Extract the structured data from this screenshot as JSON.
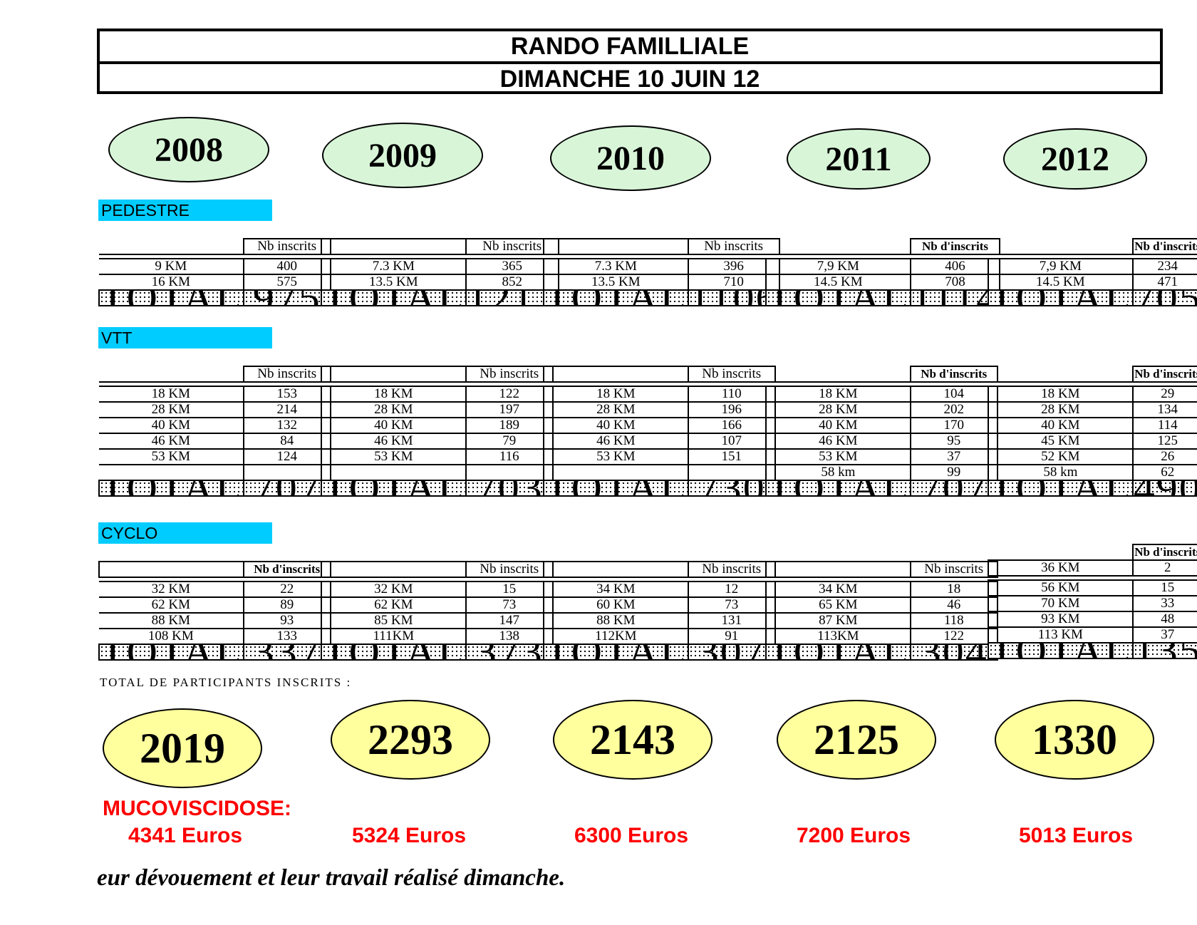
{
  "header": {
    "title": "RANDO FAMILLIALE",
    "date": "DIMANCHE 10 JUIN 12"
  },
  "years": [
    "2008",
    "2009",
    "2010",
    "2011",
    "2012"
  ],
  "sections": {
    "pedestre": {
      "label": "PEDESTRE",
      "tables": [
        {
          "header": "Nb inscrits",
          "rows": [
            [
              "9 KM",
              "400"
            ],
            [
              "16 KM",
              "575"
            ]
          ],
          "total": [
            "TOTAL",
            "975"
          ]
        },
        {
          "header": "Nb inscrits",
          "rows": [
            [
              "7.3 KM",
              "365"
            ],
            [
              "13.5 KM",
              "852"
            ]
          ],
          "total": [
            "TOTAL",
            "1217"
          ]
        },
        {
          "header": "Nb inscrits",
          "rows": [
            [
              "7.3 KM",
              "396"
            ],
            [
              "13.5 KM",
              "710"
            ]
          ],
          "total": [
            "TOTAL",
            "1106"
          ]
        },
        {
          "header": "Nb d'inscrits",
          "rows": [
            [
              "7,9 KM",
              "406"
            ],
            [
              "14.5 KM",
              "708"
            ]
          ],
          "total": [
            "TOTAL",
            "1114"
          ]
        },
        {
          "header": "Nb d'inscrits",
          "rows": [
            [
              "7,9 KM",
              "234"
            ],
            [
              "14.5 KM",
              "471"
            ]
          ],
          "total": [
            "TOTAL",
            "705"
          ]
        }
      ]
    },
    "vtt": {
      "label": "VTT",
      "tables": [
        {
          "header": "Nb inscrits",
          "rows": [
            [
              "18 KM",
              "153"
            ],
            [
              "28 KM",
              "214"
            ],
            [
              "40 KM",
              "132"
            ],
            [
              "46 KM",
              "84"
            ],
            [
              "53 KM",
              "124"
            ],
            [
              "",
              ""
            ]
          ],
          "total": [
            "TOTAL",
            "707"
          ]
        },
        {
          "header": "Nb inscrits",
          "rows": [
            [
              "18 KM",
              "122"
            ],
            [
              "28 KM",
              "197"
            ],
            [
              "40 KM",
              "189"
            ],
            [
              "46 KM",
              "79"
            ],
            [
              "53 KM",
              "116"
            ],
            [
              "",
              ""
            ]
          ],
          "total": [
            "TOTAL",
            "703"
          ]
        },
        {
          "header": "Nb inscrits",
          "rows": [
            [
              "18 KM",
              "110"
            ],
            [
              "28 KM",
              "196"
            ],
            [
              "40 KM",
              "166"
            ],
            [
              "46 KM",
              "107"
            ],
            [
              "53 KM",
              "151"
            ],
            [
              "",
              ""
            ]
          ],
          "total": [
            "TOTAL",
            "730"
          ]
        },
        {
          "header": "Nb d'inscrits",
          "rows": [
            [
              "18 KM",
              "104"
            ],
            [
              "28 KM",
              "202"
            ],
            [
              "40 KM",
              "170"
            ],
            [
              "46 KM",
              "95"
            ],
            [
              "53 KM",
              "37"
            ],
            [
              "58 km",
              "99"
            ]
          ],
          "total": [
            "TOTAL",
            "707"
          ]
        },
        {
          "header": "Nb d'inscrits",
          "rows": [
            [
              "18 KM",
              "29"
            ],
            [
              "28 KM",
              "134"
            ],
            [
              "40 KM",
              "114"
            ],
            [
              "45 KM",
              "125"
            ],
            [
              "52 KM",
              "26"
            ],
            [
              "58 km",
              "62"
            ]
          ],
          "total": [
            "TOTAL",
            "490"
          ]
        }
      ]
    },
    "cyclo": {
      "label": "CYCLO",
      "tables": [
        {
          "header": "Nb d'inscrits",
          "rows": [
            [
              "32 KM",
              "22"
            ],
            [
              "62 KM",
              "89"
            ],
            [
              "88 KM",
              "93"
            ],
            [
              "108 KM",
              "133"
            ]
          ],
          "total": [
            "TOTAL",
            "337"
          ]
        },
        {
          "header": "Nb inscrits",
          "rows": [
            [
              "32 KM",
              "15"
            ],
            [
              "62 KM",
              "73"
            ],
            [
              "85 KM",
              "147"
            ],
            [
              "111KM",
              "138"
            ]
          ],
          "total": [
            "TOTAL",
            "373"
          ]
        },
        {
          "header": "Nb inscrits",
          "rows": [
            [
              "34 KM",
              "12"
            ],
            [
              "60 KM",
              "73"
            ],
            [
              "88 KM",
              "131"
            ],
            [
              "112KM",
              "91"
            ]
          ],
          "total": [
            "TOTAL",
            "307"
          ]
        },
        {
          "header": "Nb inscrits",
          "rows": [
            [
              "34 KM",
              "18"
            ],
            [
              "65 KM",
              "46"
            ],
            [
              "87 KM",
              "118"
            ],
            [
              "113KM",
              "122"
            ]
          ],
          "total": [
            "TOTAL",
            "304"
          ]
        },
        {
          "header": "Nb d'inscrits",
          "first_row": [
            "36 KM",
            "2"
          ],
          "rows": [
            [
              "56 KM",
              "15"
            ],
            [
              "70 KM",
              "33"
            ],
            [
              "93 KM",
              "48"
            ],
            [
              "113 KM",
              "37"
            ]
          ],
          "total": [
            "TOTAL",
            "135"
          ]
        }
      ]
    }
  },
  "participants": {
    "label": "TOTAL DE PARTICIPANTS INSCRITS :",
    "totals": [
      "2019",
      "2293",
      "2143",
      "2125",
      "1330"
    ]
  },
  "mucoviscidose": {
    "label": "MUCOVISCIDOSE:",
    "amounts": [
      "4341 Euros",
      "5324 Euros",
      "6300 Euros",
      "7200 Euros",
      "5013 Euros"
    ]
  },
  "closing_text": "eur dévouement et leur travail réalisé dimanche.",
  "colors": {
    "year_ellipse": "#d8f5d8",
    "total_ellipse": "#ffff9e",
    "section_label": "#00ccff",
    "accent_red": "#ff0000"
  }
}
